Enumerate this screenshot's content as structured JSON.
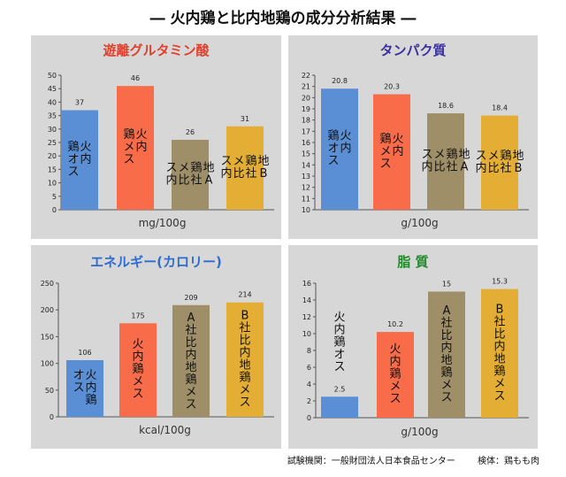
{
  "title": "― 火内鶏と比内地鶏の成分分析結果 ―",
  "footer": {
    "institution": "試験機関：一般財団法人日本食品センター",
    "sample": "検体：鶏もも肉"
  },
  "colors": {
    "panel_bg": "#d7d7d7",
    "series": [
      "#5b8fd5",
      "#f86c49",
      "#9e8f68",
      "#e4ad34"
    ],
    "title_red": "#e0402c",
    "title_blue": "#2e6bd0",
    "title_purple": "#3a2fa0",
    "title_green": "#1f8a2a"
  },
  "chart_data": [
    {
      "type": "bar",
      "title": "遊離グルタミン酸",
      "xlabel": "mg/100g",
      "ylim": [
        0,
        50
      ],
      "yticks": [
        0,
        5,
        10,
        15,
        20,
        25,
        30,
        35,
        40,
        45,
        50
      ],
      "categories": [
        "火内鶏オス",
        "火内鶏メス",
        "A社比内地鶏メス",
        "B社比内地鶏メス"
      ],
      "bar_labels": [
        [
          "火内",
          "鶏オス"
        ],
        [
          "火内",
          "鶏メス"
        ],
        [
          "地A",
          "鶏社",
          "メ比",
          "ス内"
        ],
        [
          "地B",
          "鶏社",
          "メ比",
          "ス内"
        ]
      ],
      "values": [
        37,
        46,
        26,
        31
      ],
      "label_color": "#111111",
      "title_color": "#e0402c"
    },
    {
      "type": "bar",
      "title": "タンパク質",
      "xlabel": "g/100g",
      "ylim": [
        10,
        22
      ],
      "yticks": [
        10,
        11,
        12,
        13,
        14,
        15,
        16,
        17,
        18,
        19,
        20,
        21,
        22
      ],
      "categories": [
        "火内鶏オス",
        "火内鶏メス",
        "A社比内地鶏メス",
        "B社比内地鶏メス"
      ],
      "bar_labels": [
        [
          "火内",
          "鶏オス"
        ],
        [
          "火内",
          "鶏メス"
        ],
        [
          "地A",
          "鶏社",
          "メ比",
          "ス内"
        ],
        [
          "地B",
          "鶏社",
          "メ比",
          "ス内"
        ]
      ],
      "values": [
        20.8,
        20.3,
        18.6,
        18.4
      ],
      "label_color": "#111111",
      "title_color": "#3a2fa0"
    },
    {
      "type": "bar",
      "title": "エネルギー(カロリー)",
      "xlabel": "kcal/100g",
      "ylim": [
        0,
        250
      ],
      "yticks": [
        0,
        50,
        100,
        150,
        200,
        250
      ],
      "categories": [
        "火内鶏オス",
        "火内鶏メス",
        "A社比内地鶏メス",
        "B社比内地鶏メス"
      ],
      "bar_labels": [
        [
          "火内鶏",
          "オス"
        ],
        [
          "火内鶏メス"
        ],
        [
          "A社比内地鶏メス"
        ],
        [
          "B社比内地鶏メス"
        ]
      ],
      "values": [
        106,
        175,
        209,
        214
      ],
      "label_color": "#111111",
      "title_color": "#2e6bd0"
    },
    {
      "type": "bar",
      "title": "脂 質",
      "xlabel": "g/100g",
      "ylim": [
        0,
        16
      ],
      "yticks": [
        0,
        2,
        4,
        6,
        8,
        10,
        12,
        14,
        16
      ],
      "categories": [
        "火内鶏オス",
        "火内鶏メス",
        "A社比内地鶏メス",
        "B社比内地鶏メス"
      ],
      "bar_labels": [
        [
          "火内鶏オス"
        ],
        [
          "火内鶏メス"
        ],
        [
          "A社比内地鶏メス"
        ],
        [
          "B社比内地鶏メス"
        ]
      ],
      "values": [
        2.5,
        10.2,
        15,
        15.3
      ],
      "label_color": "#111111",
      "title_color": "#1f8a2a"
    }
  ]
}
